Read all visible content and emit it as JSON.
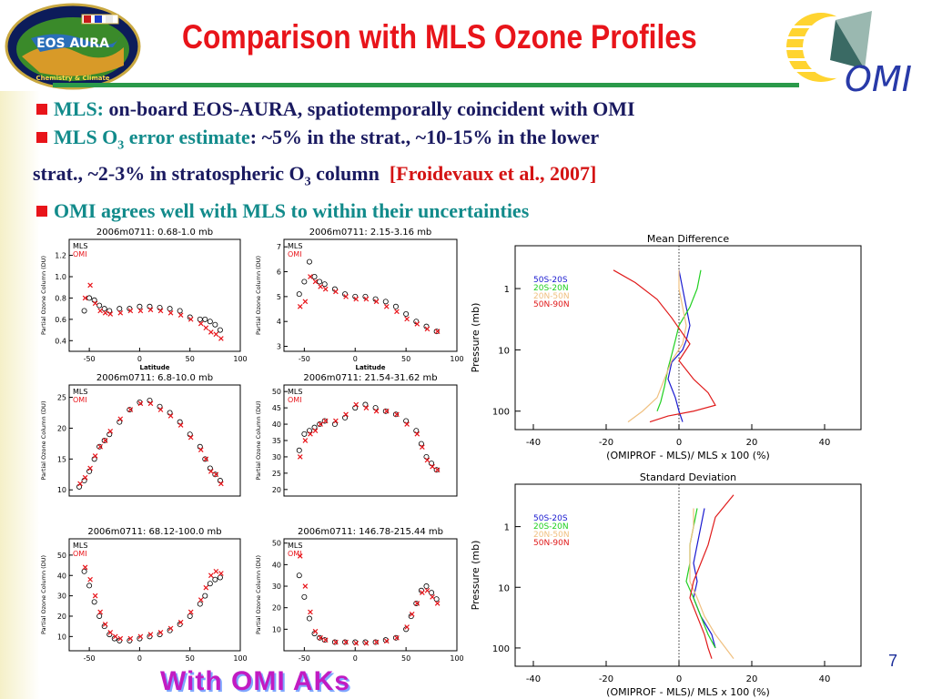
{
  "slide": {
    "title": "Comparison with MLS Ozone Profiles",
    "bullets": [
      {
        "label": "MLS:",
        "text": " on-board EOS-AURA, spatiotemporally coincident with OMI"
      },
      {
        "label": "MLS O",
        "label_sub": "3",
        "label_tail": " error estimate",
        "text_a": ": ~5% in the strat., ~10-15% in the lower",
        "text_b": "strat., ~2-3% in stratospheric O",
        "text_b_sub": "3",
        "text_c": " column  ",
        "citation": "[Froidevaux et al., 2007]"
      },
      {
        "label": "OMI agrees well with MLS to within their uncertainties"
      }
    ],
    "page_number": "7",
    "footer": "With OMI AKs",
    "logo_left": {
      "title": "EOS AURA",
      "subtitle": "Chemistry & Climate"
    },
    "logo_right": {
      "text": "OMI"
    }
  },
  "colors": {
    "title": "#e8141a",
    "teal": "#128b8b",
    "navy": "#1a1a60",
    "citation": "#d41414",
    "mls": "#000000",
    "omi": "#e8141a",
    "s50_s20": "#1a1ad0",
    "s20_n20": "#20d020",
    "n20_n50": "#f0c080",
    "n50_n90": "#e01a1a"
  },
  "chart_data": [
    {
      "type": "scatter",
      "title": "2006m0711: 0.68-1.0 mb",
      "xlabel": "Latitude",
      "ylabel": "Partial Ozone Column (DU)",
      "xlim": [
        -70,
        100
      ],
      "ylim": [
        0.3,
        1.35
      ],
      "xticks": [
        "-50",
        "0",
        "50",
        "100"
      ],
      "yticks": [
        "0.4",
        "0.6",
        "0.8",
        "1.0",
        "1.2"
      ],
      "series": [
        {
          "name": "MLS",
          "x": [
            -55,
            -50,
            -45,
            -40,
            -35,
            -30,
            -20,
            -10,
            0,
            10,
            20,
            30,
            40,
            50,
            60,
            65,
            70,
            75,
            80
          ],
          "y": [
            0.68,
            0.8,
            0.78,
            0.73,
            0.7,
            0.68,
            0.7,
            0.7,
            0.72,
            0.72,
            0.71,
            0.7,
            0.68,
            0.62,
            0.6,
            0.6,
            0.58,
            0.55,
            0.5
          ]
        },
        {
          "name": "OMI",
          "x": [
            -55,
            -50,
            -45,
            -40,
            -35,
            -30,
            -20,
            -10,
            0,
            10,
            20,
            30,
            40,
            50,
            60,
            65,
            70,
            75,
            80
          ],
          "y": [
            0.8,
            0.92,
            0.75,
            0.68,
            0.66,
            0.65,
            0.66,
            0.68,
            0.68,
            0.69,
            0.68,
            0.66,
            0.64,
            0.6,
            0.56,
            0.52,
            0.48,
            0.46,
            0.42
          ]
        }
      ]
    },
    {
      "type": "scatter",
      "title": "2006m0711: 2.15-3.16 mb",
      "xlabel": "Latitude",
      "ylabel": "Partial Ozone Column (DU)",
      "xlim": [
        -70,
        100
      ],
      "ylim": [
        2.8,
        7.3
      ],
      "xticks": [
        "-50",
        "0",
        "50",
        "100"
      ],
      "yticks": [
        "3",
        "4",
        "5",
        "6",
        "7"
      ],
      "series": [
        {
          "name": "MLS",
          "x": [
            -55,
            -50,
            -45,
            -40,
            -35,
            -30,
            -20,
            -10,
            0,
            10,
            20,
            30,
            40,
            50,
            60,
            70,
            80
          ],
          "y": [
            5.1,
            5.6,
            6.4,
            5.8,
            5.6,
            5.5,
            5.3,
            5.1,
            5.0,
            5.0,
            4.9,
            4.8,
            4.6,
            4.3,
            4.0,
            3.8,
            3.6
          ]
        },
        {
          "name": "OMI",
          "x": [
            -55,
            -50,
            -45,
            -40,
            -35,
            -30,
            -20,
            -10,
            0,
            10,
            20,
            30,
            40,
            50,
            60,
            70,
            80
          ],
          "y": [
            4.6,
            4.8,
            5.8,
            5.6,
            5.4,
            5.3,
            5.2,
            5.0,
            4.9,
            4.9,
            4.8,
            4.6,
            4.4,
            4.1,
            3.9,
            3.7,
            3.6
          ]
        }
      ]
    },
    {
      "type": "scatter",
      "title": "2006m0711: 6.8-10.0 mb",
      "xlabel": "",
      "ylabel": "Partial Ozone Column (DU)",
      "xlim": [
        -70,
        100
      ],
      "ylim": [
        9,
        27
      ],
      "xticks": [],
      "yticks": [
        "10",
        "15",
        "20",
        "25"
      ],
      "series": [
        {
          "name": "MLS",
          "x": [
            -60,
            -55,
            -50,
            -45,
            -40,
            -35,
            -30,
            -20,
            -10,
            0,
            10,
            20,
            30,
            40,
            50,
            60,
            65,
            70,
            75,
            80
          ],
          "y": [
            10.5,
            11.5,
            13,
            15,
            17,
            18,
            19,
            21,
            23,
            24.2,
            24.5,
            23.5,
            22.5,
            21,
            19,
            17,
            15,
            13.5,
            12.5,
            11.5
          ]
        },
        {
          "name": "OMI",
          "x": [
            -60,
            -55,
            -50,
            -45,
            -40,
            -35,
            -30,
            -20,
            -10,
            0,
            10,
            20,
            30,
            40,
            50,
            60,
            65,
            70,
            75,
            80
          ],
          "y": [
            11,
            12,
            13.5,
            15.5,
            17,
            18,
            19.5,
            21.5,
            23,
            24,
            24,
            23,
            22,
            20.5,
            18.5,
            16.5,
            15,
            13,
            12.5,
            11
          ]
        }
      ]
    },
    {
      "type": "scatter",
      "title": "2006m0711: 21.54-31.62 mb",
      "xlabel": "",
      "ylabel": "Partial Ozone Column (DU)",
      "xlim": [
        -70,
        100
      ],
      "ylim": [
        18,
        52
      ],
      "xticks": [],
      "yticks": [
        "20",
        "25",
        "30",
        "35",
        "40",
        "45",
        "50"
      ],
      "series": [
        {
          "name": "MLS",
          "x": [
            -55,
            -50,
            -45,
            -40,
            -35,
            -30,
            -20,
            -10,
            0,
            10,
            20,
            30,
            40,
            50,
            60,
            65,
            70,
            75,
            80
          ],
          "y": [
            32,
            37,
            38,
            39,
            40,
            41,
            40,
            42,
            45,
            46,
            45,
            44,
            43,
            41,
            38,
            34,
            30,
            28,
            26
          ]
        },
        {
          "name": "OMI",
          "x": [
            -55,
            -50,
            -45,
            -40,
            -35,
            -30,
            -20,
            -10,
            0,
            10,
            20,
            30,
            40,
            50,
            60,
            65,
            70,
            75,
            80
          ],
          "y": [
            30,
            35,
            37,
            38,
            40,
            41,
            41,
            43,
            46,
            45,
            44,
            44,
            43,
            40,
            37,
            33,
            29,
            27,
            26
          ]
        }
      ]
    },
    {
      "type": "scatter",
      "title": "2006m0711: 68.12-100.0 mb",
      "xlabel": "",
      "ylabel": "Partial Ozone Column (DU)",
      "xlim": [
        -70,
        100
      ],
      "ylim": [
        3,
        58
      ],
      "xticks": [
        "-50",
        "0",
        "50",
        "100"
      ],
      "yticks": [
        "10",
        "20",
        "30",
        "40",
        "50"
      ],
      "series": [
        {
          "name": "MLS",
          "x": [
            -55,
            -50,
            -45,
            -40,
            -35,
            -30,
            -25,
            -20,
            -10,
            0,
            10,
            20,
            30,
            40,
            50,
            60,
            65,
            70,
            75,
            80
          ],
          "y": [
            42,
            35,
            27,
            20,
            15,
            11,
            9,
            8,
            8,
            9,
            10,
            11,
            13,
            16,
            20,
            26,
            30,
            36,
            38,
            39
          ]
        },
        {
          "name": "OMI",
          "x": [
            -55,
            -50,
            -45,
            -40,
            -35,
            -30,
            -25,
            -20,
            -10,
            0,
            10,
            20,
            30,
            40,
            50,
            60,
            65,
            70,
            75,
            80
          ],
          "y": [
            44,
            38,
            30,
            22,
            16,
            12,
            10,
            9,
            9,
            10,
            11,
            12,
            14,
            17,
            22,
            28,
            34,
            40,
            42,
            41
          ]
        }
      ]
    },
    {
      "type": "scatter",
      "title": "2006m0711: 146.78-215.44 mb",
      "xlabel": "",
      "ylabel": "Partial Ozone Column (DU)",
      "xlim": [
        -70,
        100
      ],
      "ylim": [
        0,
        52
      ],
      "xticks": [
        "-50",
        "0",
        "50",
        "100"
      ],
      "yticks": [
        "10",
        "20",
        "30",
        "40",
        "50"
      ],
      "series": [
        {
          "name": "MLS",
          "x": [
            -55,
            -50,
            -45,
            -40,
            -35,
            -30,
            -20,
            -10,
            0,
            10,
            20,
            30,
            40,
            50,
            55,
            60,
            65,
            70,
            75,
            80
          ],
          "y": [
            35,
            25,
            15,
            8,
            6,
            5,
            4,
            4,
            4,
            4,
            4,
            5,
            6,
            10,
            16,
            22,
            28,
            30,
            27,
            24
          ]
        },
        {
          "name": "OMI",
          "x": [
            -55,
            -50,
            -45,
            -40,
            -35,
            -30,
            -20,
            -10,
            0,
            10,
            20,
            30,
            40,
            50,
            55,
            60,
            65,
            70,
            75,
            80
          ],
          "y": [
            44,
            30,
            18,
            9,
            6,
            5,
            4,
            4,
            3.5,
            3.5,
            4,
            4.5,
            6,
            11,
            17,
            22,
            27,
            28,
            25,
            22
          ]
        }
      ]
    },
    {
      "type": "line",
      "title": "Mean Difference",
      "xlabel": "(OMIPROF - MLS)/ MLS x 100 (%)",
      "ylabel": "Pressure (mb)",
      "xlim": [
        -45,
        50
      ],
      "ylim": [
        0.2,
        200
      ],
      "yscale": "log",
      "xticks": [
        "-40",
        "-20",
        "0",
        "20",
        "40"
      ],
      "yticks": [
        "1",
        "10",
        "100"
      ],
      "legend_position": "top-left",
      "series": [
        {
          "name": "50S-20S",
          "x": [
            0,
            1,
            2,
            3,
            2,
            1,
            -2,
            -3,
            -1,
            0,
            1
          ],
          "y": [
            0.5,
            1,
            2,
            4,
            7,
            10,
            16,
            30,
            60,
            100,
            150
          ]
        },
        {
          "name": "20S-20N",
          "x": [
            6,
            5,
            3,
            0,
            -1,
            -2,
            -3,
            -4,
            -5,
            -6
          ],
          "y": [
            0.5,
            1,
            2,
            4,
            7,
            12,
            20,
            40,
            70,
            100
          ]
        },
        {
          "name": "20N-50N",
          "x": [
            0,
            0,
            1,
            2,
            1,
            -2,
            -4,
            -6,
            -10,
            -14
          ],
          "y": [
            0.5,
            1,
            2,
            4,
            8,
            15,
            30,
            60,
            100,
            150
          ]
        },
        {
          "name": "50N-90N",
          "x": [
            -18,
            -12,
            -6,
            -2,
            3,
            0,
            4,
            8,
            10,
            4,
            -3,
            -8
          ],
          "y": [
            0.5,
            0.8,
            1.5,
            3,
            8,
            15,
            30,
            50,
            80,
            100,
            120,
            150
          ]
        }
      ]
    },
    {
      "type": "line",
      "title": "Standard Deviation",
      "xlabel": "(OMIPROF - MLS)/ MLS x 100 (%)",
      "ylabel": "Pressure (mb)",
      "xlim": [
        -45,
        50
      ],
      "ylim": [
        0.2,
        200
      ],
      "yscale": "log",
      "xticks": [
        "-40",
        "-20",
        "0",
        "20",
        "40"
      ],
      "yticks": [
        "1",
        "10",
        "100"
      ],
      "legend_position": "top-left",
      "series": [
        {
          "name": "50S-20S",
          "x": [
            7,
            6,
            5,
            4,
            5,
            4,
            6,
            9,
            10
          ],
          "y": [
            0.5,
            1,
            2,
            4,
            8,
            15,
            30,
            60,
            100
          ]
        },
        {
          "name": "20S-20N",
          "x": [
            5,
            4,
            3,
            3,
            2,
            4,
            6,
            8,
            10
          ],
          "y": [
            0.5,
            1,
            2,
            4,
            8,
            15,
            30,
            60,
            100
          ]
        },
        {
          "name": "20N-50N",
          "x": [
            4,
            4,
            3,
            3,
            3,
            5,
            7,
            10,
            15
          ],
          "y": [
            0.5,
            1,
            2,
            4,
            8,
            15,
            30,
            60,
            150
          ]
        },
        {
          "name": "50N-90N",
          "x": [
            15,
            10,
            8,
            6,
            4,
            3,
            5,
            7,
            8,
            9
          ],
          "y": [
            0.3,
            0.7,
            2,
            4,
            8,
            15,
            30,
            60,
            100,
            150
          ]
        }
      ]
    }
  ]
}
